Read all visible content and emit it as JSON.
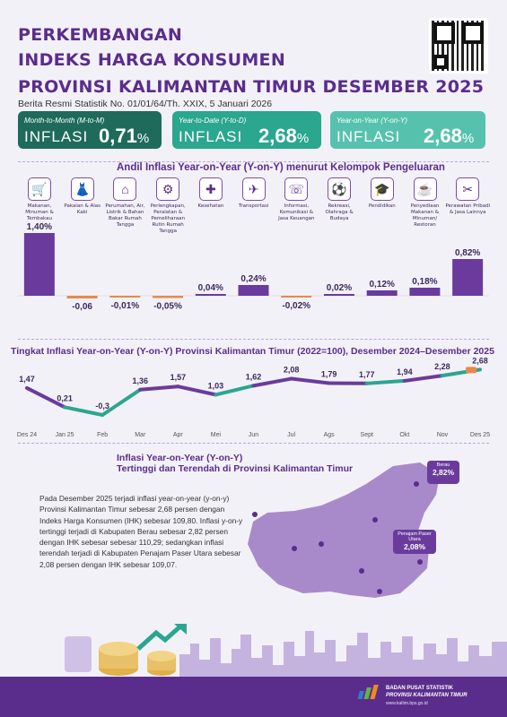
{
  "header": {
    "title_line1": "PERKEMBANGAN",
    "title_line2": "INDEKS HARGA KONSUMEN",
    "title_line3": "PROVINSI KALIMANTAN TIMUR DESEMBER 2025",
    "release": "Berita Resmi Statistik No. 01/01/64/Th. XXIX, 5 Januari 2026"
  },
  "cards": [
    {
      "label": "Month-to-Month (M-to-M)",
      "word": "INFLASI",
      "value": "0,71",
      "unit": "%"
    },
    {
      "label": "Year-to-Date (Y-to-D)",
      "word": "INFLASI",
      "value": "2,68",
      "unit": "%"
    },
    {
      "label": "Year-on-Year (Y-on-Y)",
      "word": "INFLASI",
      "value": "2,68",
      "unit": "%"
    }
  ],
  "andil_title": "Andil Inflasi Year-on-Year (Y-on-Y) menurut Kelompok Pengeluaran",
  "categories": [
    {
      "name": "Makanan, Minuman & Tembakau",
      "icon": "food-icon",
      "glyph": "🛒"
    },
    {
      "name": "Pakaian & Alas Kaki",
      "icon": "clothing-icon",
      "glyph": "👗"
    },
    {
      "name": "Perumahan, Air, Listrik & Bahan Bakar Rumah Tangga",
      "icon": "house-icon",
      "glyph": "⌂"
    },
    {
      "name": "Perlengkapan, Peralatan & Pemeliharaan Rutin Rumah Tangga",
      "icon": "household-icon",
      "glyph": "⚙"
    },
    {
      "name": "Kesehatan",
      "icon": "health-icon",
      "glyph": "✚"
    },
    {
      "name": "Transportasi",
      "icon": "transport-icon",
      "glyph": "✈"
    },
    {
      "name": "Informasi, Komunikasi & Jasa Keuangan",
      "icon": "phone-icon",
      "glyph": "☏"
    },
    {
      "name": "Rekreasi, Olahraga & Budaya",
      "icon": "sport-icon",
      "glyph": "⚽"
    },
    {
      "name": "Pendidikan",
      "icon": "education-icon",
      "glyph": "🎓"
    },
    {
      "name": "Penyediaan Makanan & Minuman/ Restoran",
      "icon": "restaurant-icon",
      "glyph": "☕"
    },
    {
      "name": "Perawatan Pribadi & Jasa Lainnya",
      "icon": "personal-care-icon",
      "glyph": "✂"
    }
  ],
  "chart_data": [
    {
      "type": "bar",
      "categories": [
        "Makanan, Minuman & Tembakau",
        "Pakaian & Alas Kaki",
        "Perumahan, Air, Listrik & Bahan Bakar Rumah Tangga",
        "Perlengkapan, Peralatan & Pemeliharaan Rutin Rumah Tangga",
        "Kesehatan",
        "Transportasi",
        "Informasi, Komunikasi & Jasa Keuangan",
        "Rekreasi, Olahraga & Budaya",
        "Pendidikan",
        "Penyediaan Makanan & Minuman/ Restoran",
        "Perawatan Pribadi & Jasa Lainnya"
      ],
      "values": [
        1.4,
        -0.06,
        -0.01,
        -0.05,
        0.04,
        0.24,
        -0.02,
        0.02,
        0.12,
        0.18,
        0.82
      ],
      "labels": [
        "1,40%",
        "-0,06",
        "-0,01%",
        "-0,05%",
        "0,04%",
        "0,24%",
        "-0,02%",
        "0,02%",
        "0,12%",
        "0,18%",
        "0,82%"
      ],
      "positive_color": "#6a3b9c",
      "negative_color": "#e8894a",
      "title": "Andil Inflasi Year-on-Year (Y-on-Y) menurut Kelompok Pengeluaran"
    },
    {
      "type": "line",
      "title": "Tingkat Inflasi Year-on-Year (Y-on-Y) Provinsi Kalimantan Timur (2022=100), Desember 2024–Desember 2025",
      "x": [
        "Des 24",
        "Jan 25",
        "Feb",
        "Mar",
        "Apr",
        "Mei",
        "Jun",
        "Jul",
        "Ags",
        "Sept",
        "Okt",
        "Nov",
        "Des 25"
      ],
      "values": [
        1.47,
        0.21,
        -0.3,
        1.36,
        1.57,
        1.03,
        1.62,
        2.08,
        1.79,
        1.77,
        1.94,
        2.28,
        2.68
      ],
      "labels": [
        "1,47",
        "0,21",
        "-0,3",
        "1,36",
        "1,57",
        "1,03",
        "1,62",
        "2,08",
        "1,79",
        "1,77",
        "1,94",
        "2,28",
        "2,68"
      ],
      "colors": [
        "#2ba68f",
        "#6a3b9c"
      ]
    }
  ],
  "bottom": {
    "title1": "Inflasi Year-on-Year (Y-on-Y)",
    "title2": "Tertinggi dan Terendah di Provinsi Kalimantan Timur",
    "paragraph": "Pada Desember 2025 terjadi inflasi year-on-year (y-on-y) Provinsi Kalimantan Timur sebesar 2,68 persen dengan Indeks Harga Konsumen (IHK) sebesar 109,80. Inflasi y-on-y tertinggi terjadi di Kabupaten Berau sebesar 2,82 persen dengan IHK sebesar sebesar 110,29; sedangkan inflasi terendah terjadi di Kabupaten Penajam Paser Utara sebesar 2,08 persen dengan IHK sebesar 109,07.",
    "callouts": [
      {
        "name": "Berau",
        "value": "2,82%"
      },
      {
        "name": "Penajam Paser Utara",
        "value": "2,08%"
      }
    ]
  },
  "footer": {
    "org1": "BADAN PUSAT STATISTIK",
    "org2": "PROVINSI KALIMANTAN TIMUR",
    "url": "www.kaltim.bps.go.id"
  }
}
